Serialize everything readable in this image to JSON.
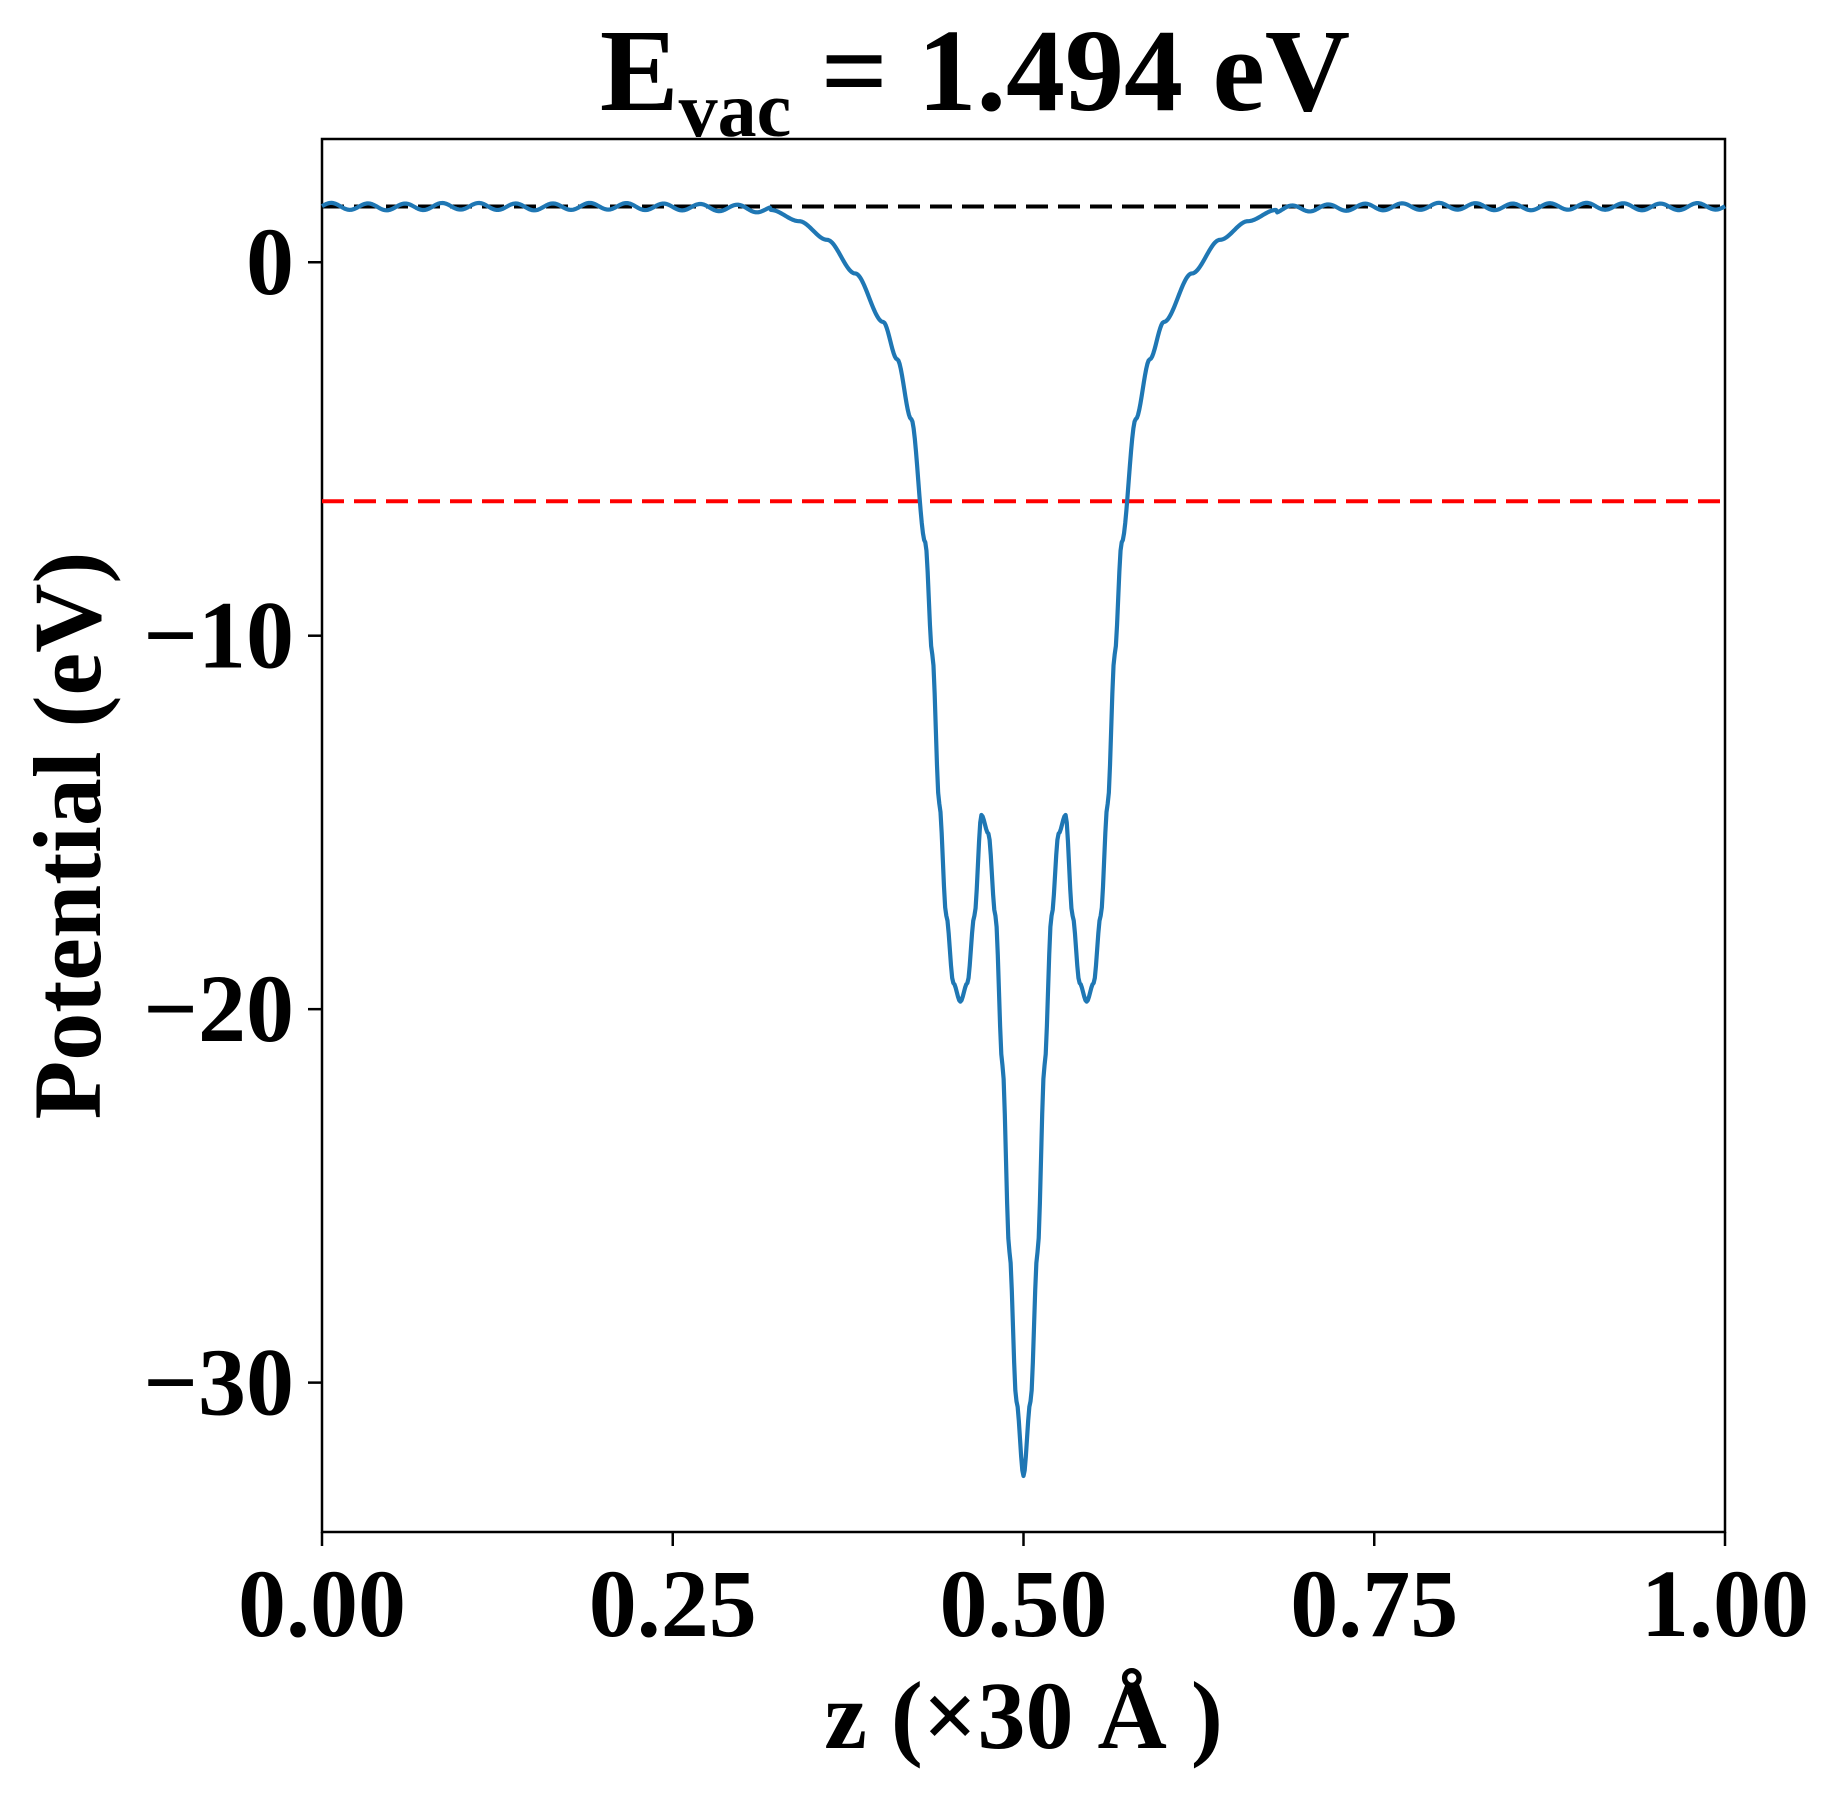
{
  "chart_data": {
    "type": "line",
    "title": {
      "main": "E",
      "subscript": "vac",
      "rest": " = 1.494 eV"
    },
    "xlabel": "z (×30 Å )",
    "ylabel": "Potential (eV)",
    "xlim": [
      0.0,
      1.0
    ],
    "ylim": [
      -34.0,
      3.3
    ],
    "x_ticks": [
      {
        "value": 0.0,
        "label": "0.00"
      },
      {
        "value": 0.25,
        "label": "0.25"
      },
      {
        "value": 0.5,
        "label": "0.50"
      },
      {
        "value": 0.75,
        "label": "0.75"
      },
      {
        "value": 1.0,
        "label": "1.00"
      }
    ],
    "y_ticks": [
      {
        "value": 0,
        "label": "0"
      },
      {
        "value": -10,
        "label": "−10"
      },
      {
        "value": -20,
        "label": "−20"
      },
      {
        "value": -30,
        "label": "−30"
      }
    ],
    "grid": false,
    "legend": "none",
    "reference_lines": [
      {
        "kind": "horizontal",
        "y": 1.494,
        "color": "#000000",
        "style": "dashed"
      },
      {
        "kind": "horizontal",
        "y": -6.4,
        "color": "#ff0000",
        "style": "dashed"
      }
    ],
    "series": [
      {
        "color": "#1f77b4",
        "points": [
          [
            0.0,
            1.5
          ],
          [
            0.05,
            1.48
          ],
          [
            0.1,
            1.5
          ],
          [
            0.15,
            1.48
          ],
          [
            0.2,
            1.5
          ],
          [
            0.25,
            1.48
          ],
          [
            0.3,
            1.45
          ],
          [
            0.32,
            1.4
          ],
          [
            0.34,
            1.1
          ],
          [
            0.36,
            0.6
          ],
          [
            0.38,
            -0.3
          ],
          [
            0.4,
            -1.6
          ],
          [
            0.41,
            -2.6
          ],
          [
            0.42,
            -4.2
          ],
          [
            0.43,
            -7.5
          ],
          [
            0.435,
            -10.5
          ],
          [
            0.44,
            -14.5
          ],
          [
            0.445,
            -17.5
          ],
          [
            0.45,
            -19.3
          ],
          [
            0.455,
            -19.8
          ],
          [
            0.46,
            -19.3
          ],
          [
            0.465,
            -17.5
          ],
          [
            0.47,
            -14.8
          ],
          [
            0.475,
            -15.3
          ],
          [
            0.48,
            -17.5
          ],
          [
            0.485,
            -21.5
          ],
          [
            0.49,
            -26.5
          ],
          [
            0.495,
            -30.5
          ],
          [
            0.5,
            -32.5
          ],
          [
            0.505,
            -30.5
          ],
          [
            0.51,
            -26.5
          ],
          [
            0.515,
            -21.5
          ],
          [
            0.52,
            -17.5
          ],
          [
            0.525,
            -15.3
          ],
          [
            0.53,
            -14.8
          ],
          [
            0.535,
            -17.5
          ],
          [
            0.54,
            -19.3
          ],
          [
            0.545,
            -19.8
          ],
          [
            0.55,
            -19.3
          ],
          [
            0.555,
            -17.5
          ],
          [
            0.56,
            -14.5
          ],
          [
            0.565,
            -10.5
          ],
          [
            0.57,
            -7.5
          ],
          [
            0.58,
            -4.2
          ],
          [
            0.59,
            -2.6
          ],
          [
            0.6,
            -1.6
          ],
          [
            0.62,
            -0.3
          ],
          [
            0.64,
            0.6
          ],
          [
            0.66,
            1.1
          ],
          [
            0.68,
            1.4
          ],
          [
            0.7,
            1.45
          ],
          [
            0.75,
            1.48
          ],
          [
            0.8,
            1.5
          ],
          [
            0.85,
            1.48
          ],
          [
            0.9,
            1.5
          ],
          [
            0.95,
            1.48
          ],
          [
            1.0,
            1.5
          ]
        ]
      }
    ]
  }
}
